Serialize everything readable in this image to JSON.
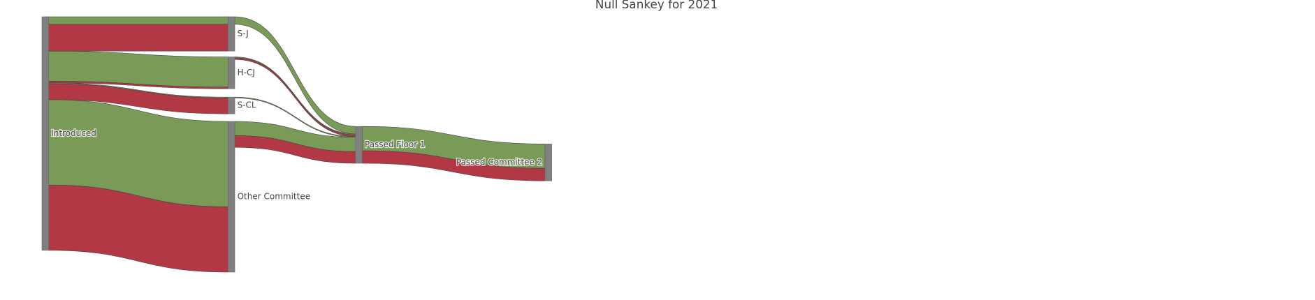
{
  "chart_data": {
    "type": "sankey",
    "title": "Null Sankey for 2021",
    "nodes": {
      "labels": [
        "Introduced",
        "S-J",
        "H-CJ",
        "S-CL",
        "Other Committee",
        "Passed Floor 1",
        "Passed Committee 2"
      ],
      "color": "#808080"
    },
    "links": {
      "source": [
        0,
        0,
        0,
        0,
        0,
        0,
        0,
        0,
        1,
        2,
        2,
        3,
        4,
        4,
        5,
        5
      ],
      "target": [
        1,
        1,
        2,
        2,
        3,
        3,
        4,
        4,
        5,
        5,
        5,
        5,
        5,
        5,
        6,
        6
      ],
      "values": [
        9,
        32,
        36,
        2,
        1,
        19,
        102,
        78,
        9,
        1,
        2,
        1,
        17,
        14,
        29,
        15
      ],
      "colors": [
        "#7a9a57",
        "#b33845",
        "#7a9a57",
        "#b33845",
        "#7a9a57",
        "#b33845",
        "#7a9a57",
        "#b33845",
        "#7a9a57",
        "#7a9a57",
        "#b33845",
        "#7a9a57",
        "#7a9a57",
        "#b33845",
        "#7a9a57",
        "#b33845"
      ]
    }
  }
}
